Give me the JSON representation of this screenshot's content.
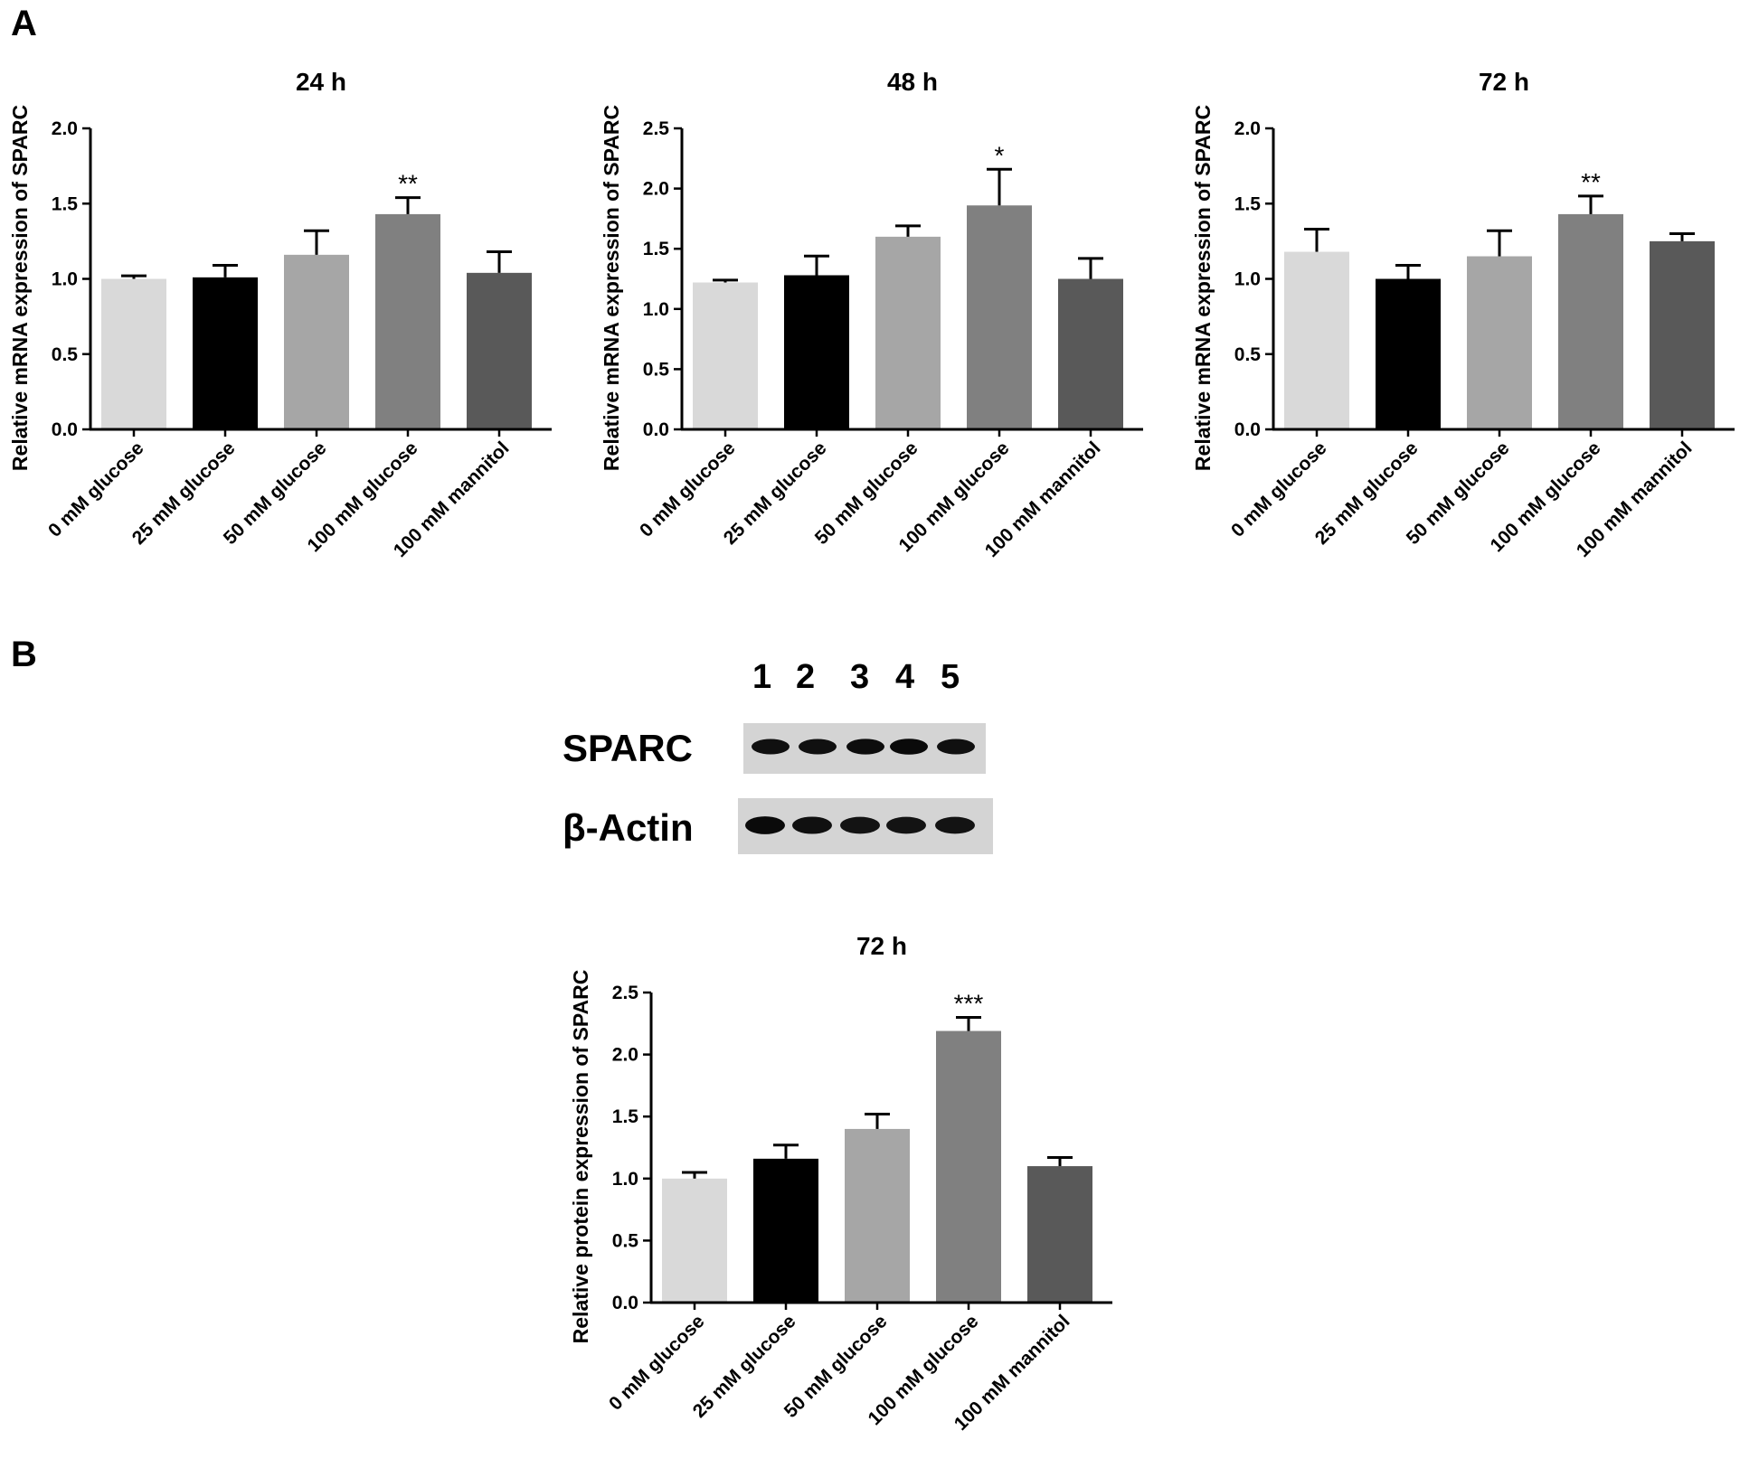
{
  "figure": {
    "panel_a_label": "A",
    "panel_b_label": "B"
  },
  "blot": {
    "lanes": [
      "1",
      "2",
      "3",
      "4",
      "5"
    ],
    "sparc_label": "SPARC",
    "actin_label": "β-Actin",
    "sparc_band_intensity": [
      0.9,
      0.9,
      0.95,
      1.0,
      0.9
    ],
    "actin_band_intensity": [
      1.0,
      0.9,
      0.85,
      0.85,
      0.85
    ]
  },
  "chart_data": [
    {
      "type": "bar",
      "title": "24 h",
      "xlabel": "",
      "ylabel": "Relative mRNA expression of SPARC",
      "categories": [
        "0 mM glucose",
        "25 mM glucose",
        "50 mM glucose",
        "100 mM glucose",
        "100 mM mannitol"
      ],
      "values": [
        1.0,
        1.01,
        1.16,
        1.43,
        1.04
      ],
      "errors": [
        0.02,
        0.08,
        0.16,
        0.11,
        0.14
      ],
      "annotations": [
        "",
        "",
        "",
        "**",
        ""
      ],
      "colors": [
        "#d9d9d9",
        "#000000",
        "#a6a6a6",
        "#808080",
        "#595959"
      ],
      "ylim": [
        0,
        2.0
      ],
      "yticks": [
        "0.0",
        "0.5",
        "1.0",
        "1.5",
        "2.0"
      ],
      "ytick_values": [
        0,
        0.5,
        1.0,
        1.5,
        2.0
      ]
    },
    {
      "type": "bar",
      "title": "48 h",
      "xlabel": "",
      "ylabel": "Relative mRNA expression of SPARC",
      "categories": [
        "0 mM glucose",
        "25 mM glucose",
        "50 mM glucose",
        "100 mM glucose",
        "100 mM mannitol"
      ],
      "values": [
        1.22,
        1.28,
        1.6,
        1.86,
        1.25
      ],
      "errors": [
        0.02,
        0.16,
        0.09,
        0.3,
        0.17
      ],
      "annotations": [
        "",
        "",
        "",
        "*",
        ""
      ],
      "colors": [
        "#d9d9d9",
        "#000000",
        "#a6a6a6",
        "#808080",
        "#595959"
      ],
      "ylim": [
        0,
        2.5
      ],
      "yticks": [
        "0.0",
        "0.5",
        "1.0",
        "1.5",
        "2.0",
        "2.5"
      ],
      "ytick_values": [
        0,
        0.5,
        1.0,
        1.5,
        2.0,
        2.5
      ]
    },
    {
      "type": "bar",
      "title": "72 h",
      "xlabel": "",
      "ylabel": "Relative mRNA expression of SPARC",
      "categories": [
        "0 mM glucose",
        "25 mM glucose",
        "50 mM glucose",
        "100 mM glucose",
        "100 mM mannitol"
      ],
      "values": [
        1.18,
        1.0,
        1.15,
        1.43,
        1.25
      ],
      "errors": [
        0.15,
        0.09,
        0.17,
        0.12,
        0.05
      ],
      "annotations": [
        "",
        "",
        "",
        "**",
        ""
      ],
      "colors": [
        "#d9d9d9",
        "#000000",
        "#a6a6a6",
        "#808080",
        "#595959"
      ],
      "ylim": [
        0,
        2.0
      ],
      "yticks": [
        "0.0",
        "0.5",
        "1.0",
        "1.5",
        "2.0"
      ],
      "ytick_values": [
        0,
        0.5,
        1.0,
        1.5,
        2.0
      ]
    },
    {
      "type": "bar",
      "title": "72 h",
      "xlabel": "",
      "ylabel": "Relative protein expression of SPARC",
      "categories": [
        "0 mM glucose",
        "25 mM glucose",
        "50 mM glucose",
        "100 mM glucose",
        "100 mM mannitol"
      ],
      "values": [
        1.0,
        1.16,
        1.4,
        2.19,
        1.1
      ],
      "errors": [
        0.05,
        0.11,
        0.12,
        0.11,
        0.07
      ],
      "annotations": [
        "",
        "",
        "",
        "***",
        ""
      ],
      "colors": [
        "#d9d9d9",
        "#000000",
        "#a6a6a6",
        "#808080",
        "#595959"
      ],
      "ylim": [
        0,
        2.5
      ],
      "yticks": [
        "0.0",
        "0.5",
        "1.0",
        "1.5",
        "2.0",
        "2.5"
      ],
      "ytick_values": [
        0,
        0.5,
        1.0,
        1.5,
        2.0,
        2.5
      ]
    }
  ]
}
